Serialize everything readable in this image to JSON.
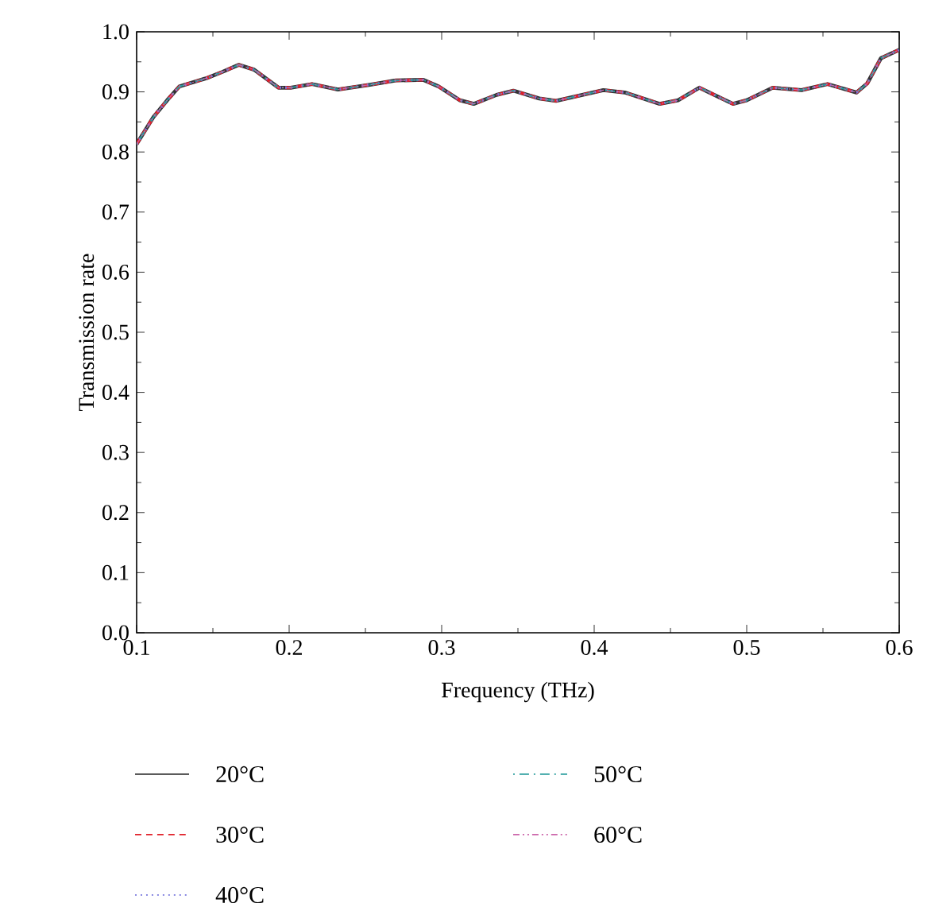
{
  "chart_data": {
    "type": "line",
    "xlabel": "Frequency (THz)",
    "ylabel": "Transmission rate",
    "xlim": [
      0.1,
      0.6
    ],
    "xticks": [
      0.1,
      0.2,
      0.3,
      0.4,
      0.5,
      0.6
    ],
    "ylim": [
      0.0,
      1.0
    ],
    "yticks": [
      {
        "value": 0,
        "label": "0.0"
      },
      0.1,
      0.2,
      0.3,
      0.4,
      0.5,
      0.6,
      0.7,
      0.8,
      0.9,
      {
        "value": 1,
        "label": "1.0"
      }
    ],
    "grid": false,
    "legend": "bottom",
    "marker": "none",
    "x": [
      0.1,
      0.111,
      0.12,
      0.128,
      0.146,
      0.156,
      0.167,
      0.177,
      0.193,
      0.201,
      0.215,
      0.232,
      0.253,
      0.27,
      0.288,
      0.298,
      0.312,
      0.321,
      0.336,
      0.347,
      0.364,
      0.375,
      0.406,
      0.42,
      0.443,
      0.455,
      0.469,
      0.482,
      0.491,
      0.5,
      0.517,
      0.536,
      0.553,
      0.572,
      0.579,
      0.588,
      0.6
    ],
    "series": [
      {
        "name": "20°C",
        "color": "#333333",
        "line_style": "solid",
        "values": [
          0.813,
          0.858,
          0.886,
          0.909,
          0.923,
          0.933,
          0.945,
          0.937,
          0.907,
          0.907,
          0.913,
          0.904,
          0.912,
          0.919,
          0.92,
          0.909,
          0.886,
          0.88,
          0.895,
          0.902,
          0.889,
          0.885,
          0.903,
          0.899,
          0.88,
          0.886,
          0.907,
          0.891,
          0.88,
          0.886,
          0.907,
          0.903,
          0.913,
          0.899,
          0.914,
          0.956,
          0.97
        ]
      },
      {
        "name": "30°C",
        "color": "#e0202a",
        "line_style": "dashed",
        "values": [
          0.813,
          0.858,
          0.886,
          0.909,
          0.923,
          0.933,
          0.945,
          0.937,
          0.907,
          0.907,
          0.913,
          0.904,
          0.912,
          0.919,
          0.92,
          0.909,
          0.886,
          0.88,
          0.895,
          0.902,
          0.889,
          0.885,
          0.903,
          0.899,
          0.88,
          0.886,
          0.907,
          0.891,
          0.88,
          0.886,
          0.907,
          0.903,
          0.913,
          0.899,
          0.914,
          0.956,
          0.97
        ]
      },
      {
        "name": "40°C",
        "color": "#7777dd",
        "line_style": "dotted",
        "values": [
          0.813,
          0.858,
          0.886,
          0.909,
          0.923,
          0.933,
          0.945,
          0.937,
          0.907,
          0.907,
          0.913,
          0.904,
          0.912,
          0.919,
          0.92,
          0.909,
          0.886,
          0.88,
          0.895,
          0.902,
          0.889,
          0.885,
          0.903,
          0.899,
          0.88,
          0.886,
          0.907,
          0.891,
          0.88,
          0.886,
          0.907,
          0.903,
          0.913,
          0.899,
          0.914,
          0.956,
          0.97
        ]
      },
      {
        "name": "50°C",
        "color": "#2a9d9d",
        "line_style": "dashdot",
        "values": [
          0.813,
          0.858,
          0.886,
          0.909,
          0.923,
          0.933,
          0.945,
          0.937,
          0.907,
          0.907,
          0.913,
          0.904,
          0.912,
          0.919,
          0.92,
          0.909,
          0.886,
          0.88,
          0.895,
          0.902,
          0.889,
          0.885,
          0.903,
          0.899,
          0.88,
          0.886,
          0.907,
          0.891,
          0.88,
          0.886,
          0.907,
          0.903,
          0.913,
          0.899,
          0.914,
          0.956,
          0.97
        ]
      },
      {
        "name": "60°C",
        "color": "#cc66aa",
        "line_style": "dashdotdot",
        "values": [
          0.813,
          0.858,
          0.886,
          0.909,
          0.923,
          0.933,
          0.945,
          0.937,
          0.907,
          0.907,
          0.913,
          0.904,
          0.912,
          0.919,
          0.92,
          0.909,
          0.886,
          0.88,
          0.895,
          0.902,
          0.889,
          0.885,
          0.903,
          0.899,
          0.88,
          0.886,
          0.907,
          0.891,
          0.88,
          0.886,
          0.907,
          0.903,
          0.913,
          0.899,
          0.914,
          0.956,
          0.97
        ]
      }
    ]
  }
}
